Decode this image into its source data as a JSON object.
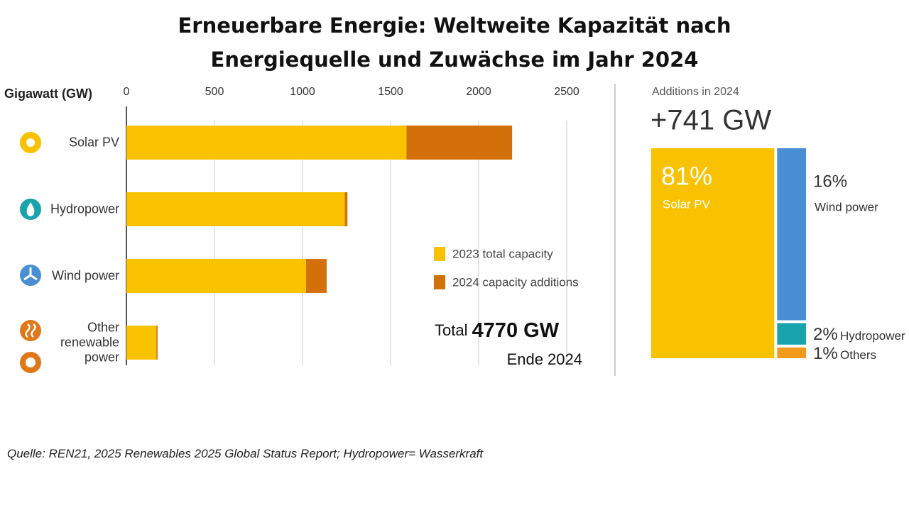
{
  "title": "Erneuerbare Energie: Weltweite Kapazität nach Energiequelle und Zuwächse im Jahr 2024",
  "source": "Quelle: REN21, 2025 Renewables 2025 Global Status Report; Hydropower= Wasserkraft",
  "chart_data": [
    {
      "type": "bar",
      "orientation": "horizontal",
      "stacked": true,
      "x_label": "Gigawatt (GW)",
      "categories": [
        "Solar PV",
        "Hydropower",
        "Wind power",
        "Other renewable power"
      ],
      "series": [
        {
          "name": "2023 total capacity",
          "color": "#f8c200",
          "values": [
            1590,
            1240,
            1020,
            170
          ]
        },
        {
          "name": "2024 capacity additions",
          "color": "#d4700a",
          "values": [
            600,
            15,
            117,
            7
          ]
        }
      ],
      "xlim": [
        0,
        2600
      ],
      "xticks": [
        0,
        500,
        1000,
        1500,
        2000,
        2500
      ],
      "grid": true,
      "legend": "lower right",
      "annotations": {
        "total_prefix": "Total",
        "total_value": "4770 GW",
        "date": "Ende 2024"
      }
    },
    {
      "type": "treemap",
      "title": "Additions in 2024",
      "headline": "+741 GW",
      "categories": [
        "Solar PV",
        "Wind power",
        "Hydropower",
        "Others"
      ],
      "values": [
        81,
        16,
        2,
        1
      ],
      "value_labels": [
        "81%",
        "16%",
        "2%",
        "1%"
      ],
      "colors": [
        "#f8c200",
        "#4a8fd4",
        "#18a3ad",
        "#f29a1c"
      ]
    }
  ]
}
